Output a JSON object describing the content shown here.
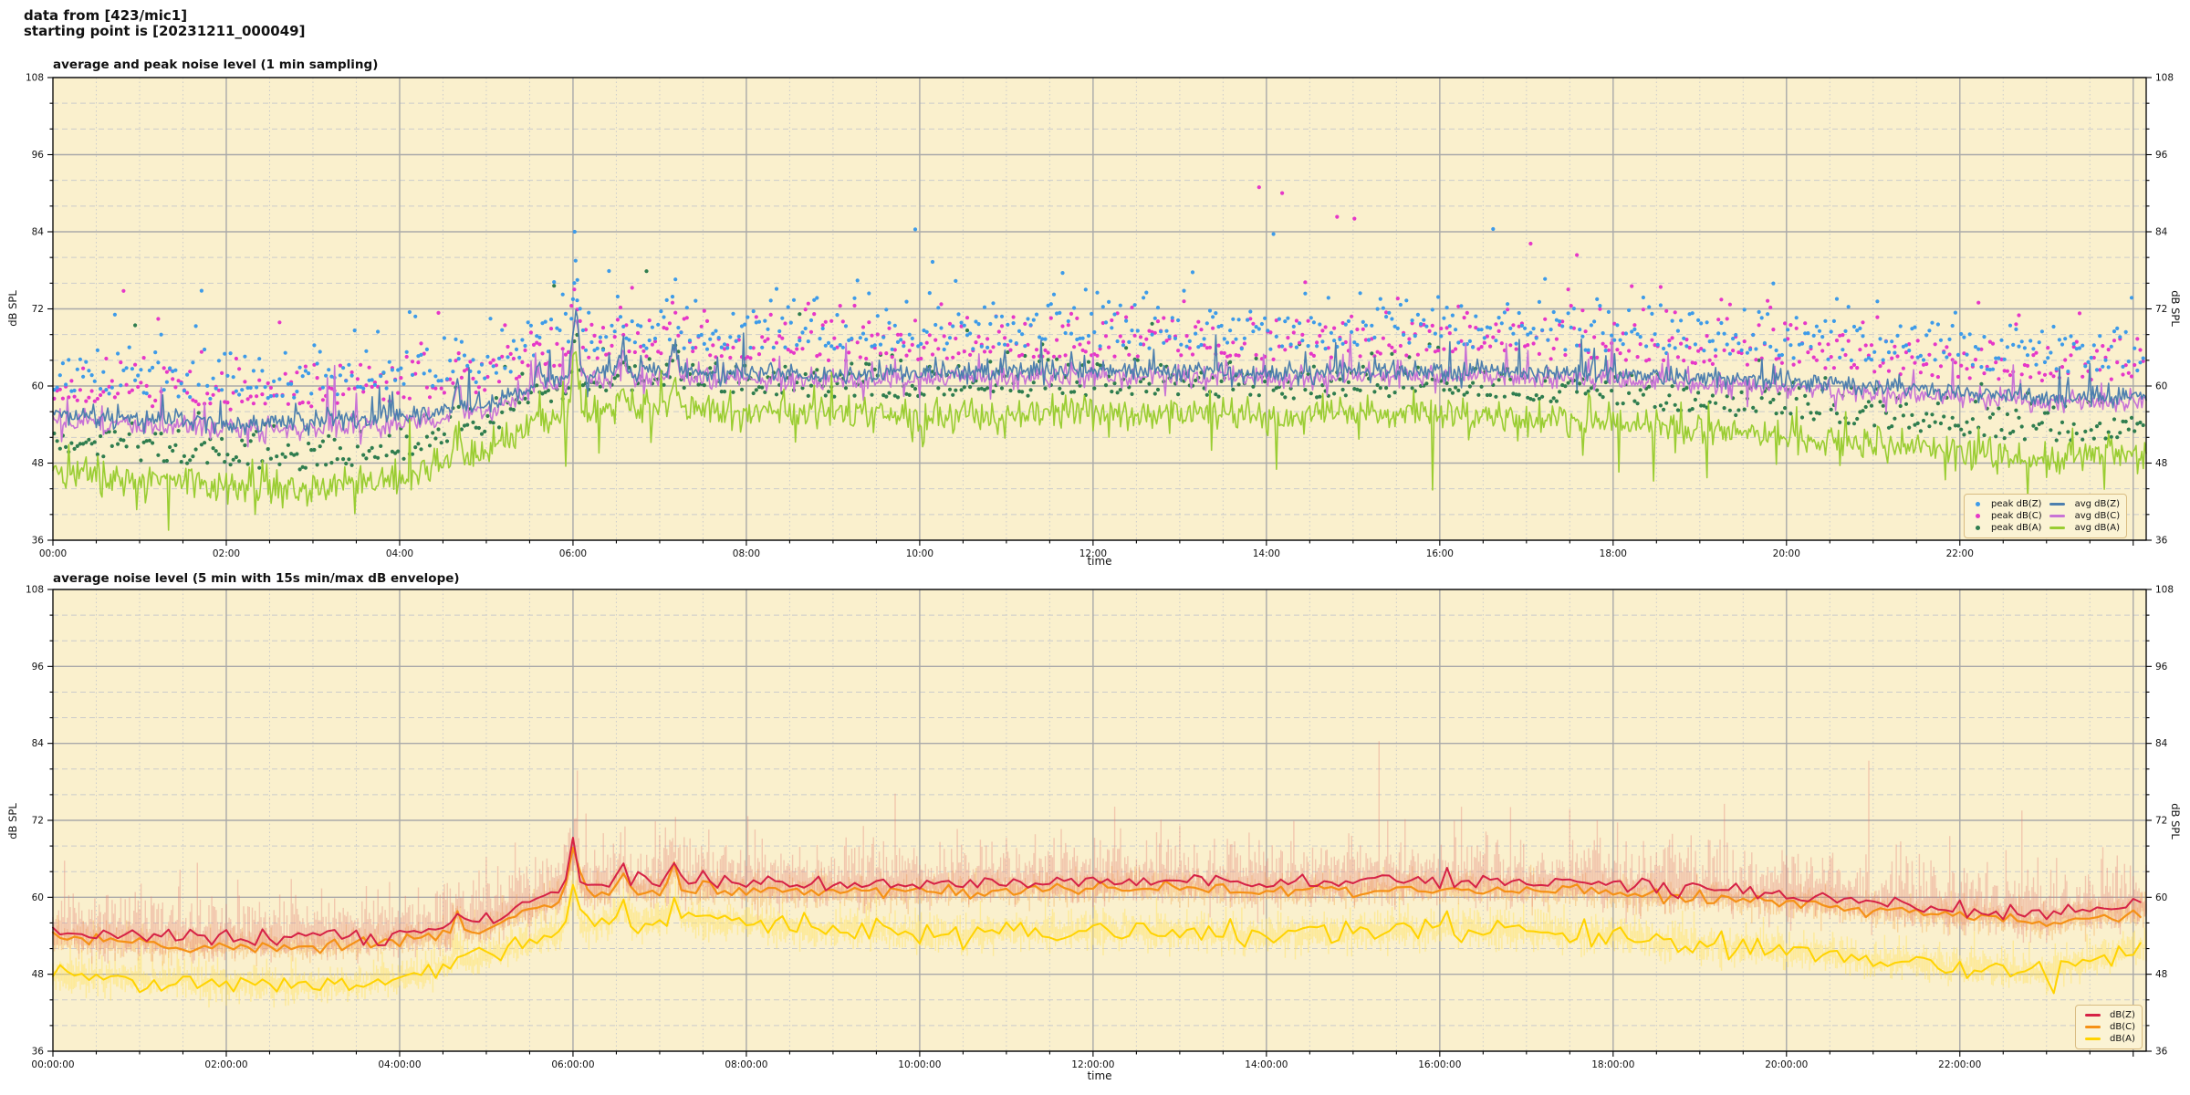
{
  "header": {
    "line1": "data from [423/mic1]",
    "line2": "starting point is [20231211_000049]"
  },
  "chart_data": [
    {
      "type": "line",
      "title": "average and peak noise level (1 min sampling)",
      "xlabel": "time",
      "ylabel": "dB SPL",
      "ylabel_right": "dB SPL",
      "ylim": [
        36,
        108
      ],
      "xlim_hours": [
        0,
        24.15
      ],
      "y_ticks": [
        36,
        48,
        60,
        72,
        84,
        96,
        108
      ],
      "x_tick_labels": [
        "00:00",
        "02:00",
        "04:00",
        "06:00",
        "08:00",
        "10:00",
        "12:00",
        "14:00",
        "16:00",
        "18:00",
        "20:00",
        "22:00"
      ],
      "grid": {
        "major_x_every_h": 2,
        "minor_x_every_h": 0.5,
        "major_y_every_db": 12,
        "minor_y_every_db": 4
      },
      "legend_position": "lower right",
      "legend": [
        {
          "label": "peak dB(Z)",
          "marker": "dot",
          "color": "#3D9BE9"
        },
        {
          "label": "peak dB(C)",
          "marker": "dot",
          "color": "#E637C8"
        },
        {
          "label": "peak dB(A)",
          "marker": "dot",
          "color": "#2F7D4F"
        },
        {
          "label": "avg dB(Z)",
          "marker": "line",
          "color": "#4D7FAE"
        },
        {
          "label": "avg dB(C)",
          "marker": "line",
          "color": "#C873D6"
        },
        {
          "label": "avg dB(A)",
          "marker": "line",
          "color": "#9ACD32"
        }
      ],
      "hours": [
        0,
        1,
        2,
        3,
        4,
        5,
        6,
        7,
        8,
        9,
        10,
        11,
        12,
        13,
        14,
        15,
        16,
        17,
        18,
        19,
        20,
        21,
        22,
        23,
        24
      ],
      "series": [
        {
          "name": "avg dB(Z)",
          "color": "#4D7FAE",
          "hourly_values": [
            55.5,
            54.8,
            54.2,
            54.5,
            55.0,
            57.0,
            61.8,
            62.2,
            62.0,
            61.8,
            62.0,
            62.2,
            62.4,
            62.2,
            62.0,
            62.3,
            62.5,
            62.2,
            61.8,
            61.2,
            60.8,
            60.0,
            59.0,
            58.2,
            58.6
          ]
        },
        {
          "name": "avg dB(C)",
          "color": "#C873D6",
          "hourly_values": [
            54.6,
            53.9,
            53.3,
            53.6,
            54.1,
            56.2,
            60.9,
            61.3,
            61.1,
            60.9,
            61.1,
            61.3,
            61.5,
            61.3,
            61.1,
            61.4,
            61.6,
            61.3,
            60.9,
            60.3,
            59.9,
            59.1,
            58.1,
            57.3,
            57.7
          ]
        },
        {
          "name": "avg dB(A)",
          "color": "#9ACD32",
          "hourly_values": [
            46.5,
            45.8,
            44.8,
            44.2,
            45.8,
            50.0,
            55.8,
            56.8,
            56.2,
            55.6,
            55.2,
            55.6,
            55.8,
            55.5,
            55.2,
            55.5,
            55.8,
            55.3,
            54.2,
            53.2,
            52.2,
            50.8,
            49.8,
            48.6,
            49.5
          ]
        },
        {
          "name": "peak dB(Z)",
          "color": "#3D9BE9",
          "scatter": true,
          "offset_db": 3.6,
          "spread_db": 4.0
        },
        {
          "name": "peak dB(C)",
          "color": "#E637C8",
          "scatter": true,
          "offset_db": 3.0,
          "spread_db": 3.8
        },
        {
          "name": "peak dB(A)",
          "color": "#2F7D4F",
          "scatter": true,
          "offset_db": 2.6,
          "spread_db": 3.0
        }
      ],
      "events": [
        {
          "time_h": 6.03,
          "amplitude_db": 9.5,
          "width_h": 0.05
        },
        {
          "time_h": 4.67,
          "amplitude_db": 4.5,
          "width_h": 0.05
        },
        {
          "time_h": 5.6,
          "amplitude_db": 3.0,
          "width_h": 0.05
        },
        {
          "time_h": 6.56,
          "amplitude_db": 3.5,
          "width_h": 0.06
        },
        {
          "time_h": 7.17,
          "amplitude_db": 4.5,
          "width_h": 0.05
        }
      ]
    },
    {
      "type": "line",
      "title": "average noise level (5 min with 15s min/max dB envelope)",
      "xlabel": "time",
      "ylabel": "dB SPL",
      "ylabel_right": "dB SPL",
      "ylim": [
        36,
        108
      ],
      "xlim_hours": [
        0,
        24.15
      ],
      "y_ticks": [
        36,
        48,
        60,
        72,
        84,
        96,
        108
      ],
      "x_tick_labels": [
        "00:00:00",
        "02:00:00",
        "04:00:00",
        "06:00:00",
        "08:00:00",
        "10:00:00",
        "12:00:00",
        "14:00:00",
        "16:00:00",
        "18:00:00",
        "20:00:00",
        "22:00:00"
      ],
      "grid": {
        "major_x_every_h": 2,
        "minor_x_every_h": 0.5,
        "major_y_every_db": 12,
        "minor_y_every_db": 4
      },
      "legend_position": "lower right",
      "legend": [
        {
          "label": "dB(Z)",
          "marker": "line",
          "color": "#D62246"
        },
        {
          "label": "dB(C)",
          "marker": "line",
          "color": "#F59116"
        },
        {
          "label": "dB(A)",
          "marker": "line",
          "color": "#FFD300"
        }
      ],
      "hours": [
        0,
        1,
        2,
        3,
        4,
        5,
        6,
        7,
        8,
        9,
        10,
        11,
        12,
        13,
        14,
        15,
        16,
        17,
        18,
        19,
        20,
        21,
        22,
        23,
        24
      ],
      "series": [
        {
          "name": "dB(Z)",
          "color": "#D62246",
          "hourly_values": [
            54.8,
            54.2,
            53.6,
            53.8,
            54.4,
            56.5,
            61.8,
            62.3,
            62.4,
            62.0,
            62.1,
            62.3,
            62.6,
            62.4,
            62.1,
            62.4,
            62.6,
            62.2,
            61.8,
            61.2,
            60.4,
            59.2,
            58.2,
            57.4,
            59.0
          ],
          "envelope": {
            "color": "#E4837A",
            "opacity": 0.38,
            "up_db": 3.0,
            "down_db": 1.6
          }
        },
        {
          "name": "dB(C)",
          "color": "#F59116",
          "hourly_values": [
            53.5,
            52.9,
            52.3,
            52.5,
            53.1,
            55.2,
            60.6,
            61.1,
            61.2,
            60.8,
            60.9,
            61.1,
            61.4,
            61.2,
            60.9,
            61.2,
            61.4,
            61.0,
            60.6,
            60.0,
            59.2,
            58.0,
            57.0,
            56.2,
            57.8
          ],
          "envelope": {
            "color": "#F7B160",
            "opacity": 0.45,
            "up_db": 1.1,
            "down_db": 0.9
          }
        },
        {
          "name": "dB(A)",
          "color": "#FFD300",
          "hourly_values": [
            47.8,
            47.2,
            46.4,
            46.0,
            47.2,
            50.8,
            55.2,
            56.6,
            55.8,
            54.8,
            54.2,
            54.6,
            54.8,
            54.6,
            54.2,
            54.6,
            55.0,
            54.6,
            53.6,
            52.6,
            51.6,
            50.2,
            49.2,
            48.2,
            52.0
          ],
          "envelope": {
            "color": "#FFE465",
            "opacity": 0.5,
            "up_db": 1.5,
            "down_db": 1.2
          }
        }
      ],
      "events": [
        {
          "time_h": 6.0,
          "amplitude_db": 7.0,
          "width_h": 0.07
        },
        {
          "time_h": 4.67,
          "amplitude_db": 2.5,
          "width_h": 0.06
        },
        {
          "time_h": 6.56,
          "amplitude_db": 3.5,
          "width_h": 0.08
        },
        {
          "time_h": 7.17,
          "amplitude_db": 3.8,
          "width_h": 0.06
        }
      ]
    }
  ],
  "style": {
    "plot_bg": "#FAF0CD",
    "grid_major": "#a9a9a9",
    "grid_minor": "#cbcbcb",
    "spine": "#000000"
  }
}
